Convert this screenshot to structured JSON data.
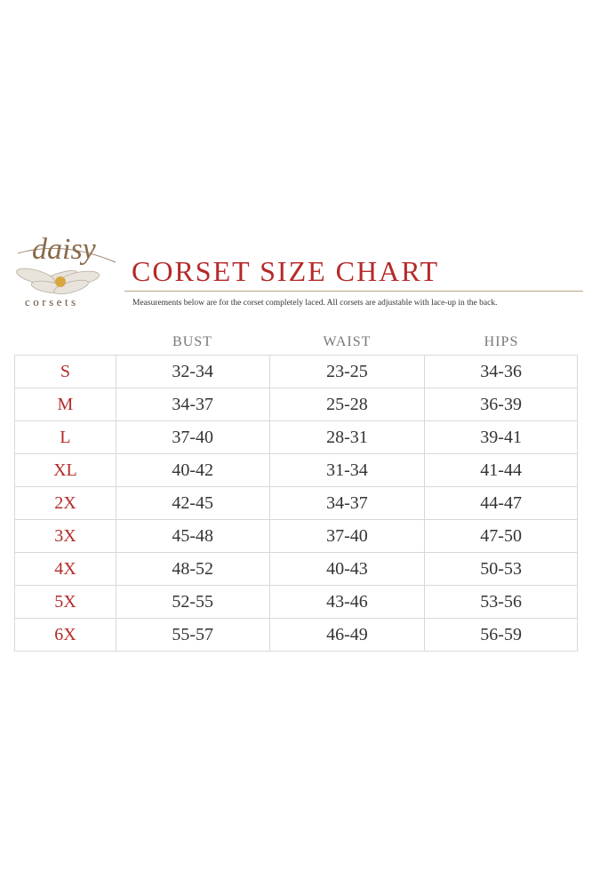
{
  "logo": {
    "name": "daisy",
    "tagline": "corsets"
  },
  "title": "CORSET SIZE CHART",
  "note": "Measurements below are for the corset completely laced.  All corsets are adjustable with lace-up in the back.",
  "table": {
    "columns": [
      "BUST",
      "WAIST",
      "HIPS"
    ],
    "rows": [
      [
        "S",
        "32-34",
        "23-25",
        "34-36"
      ],
      [
        "M",
        "34-37",
        "25-28",
        "36-39"
      ],
      [
        "L",
        "37-40",
        "28-31",
        "39-41"
      ],
      [
        "XL",
        "40-42",
        "31-34",
        "41-44"
      ],
      [
        "2X",
        "42-45",
        "34-37",
        "44-47"
      ],
      [
        "3X",
        "45-48",
        "37-40",
        "47-50"
      ],
      [
        "4X",
        "48-52",
        "40-43",
        "50-53"
      ],
      [
        "5X",
        "52-55",
        "43-46",
        "53-56"
      ],
      [
        "6X",
        "55-57",
        "46-49",
        "56-59"
      ]
    ]
  }
}
